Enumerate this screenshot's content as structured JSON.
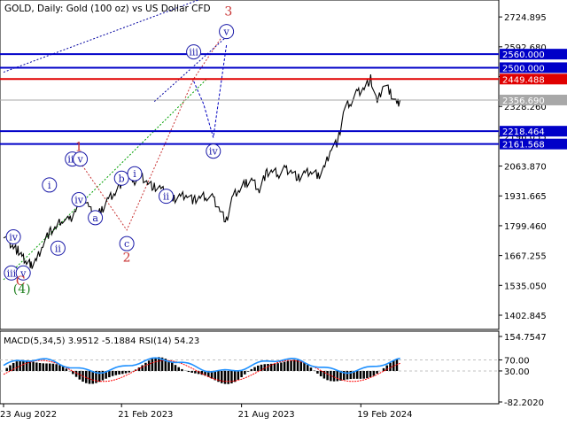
{
  "header": {
    "title": "GOLD, Daily:  Gold (100 oz) vs US Dollar CFD"
  },
  "colors": {
    "price": "#000000",
    "level_blue": "#0000c8",
    "level_red": "#e00000",
    "wave_label": "#1a1aa8",
    "wave_red": "#c83232",
    "wave_green": "#208020",
    "trend_green": "#00a000",
    "trend_navy": "#0000a0",
    "projection": "#0000c0",
    "current_gray": "#a8a8a8",
    "macd_hist": "#000000",
    "macd_signal": "#ff0000",
    "rsi": "#1e90ff",
    "grid": "#c0c0c0"
  },
  "chart_data": [
    {
      "type": "line",
      "name": "price-chart",
      "symbol": "GOLD",
      "timeframe": "Daily",
      "x_labels": [
        "23 Aug 2022",
        "21 Feb 2023",
        "21 Aug 2023",
        "19 Feb 2024"
      ],
      "y_ticks": [
        "2724.895",
        "2592.680",
        "2460.465",
        "2328.260",
        "2196.055",
        "2063.870",
        "1931.665",
        "1799.460",
        "1667.255",
        "1535.050",
        "1402.845"
      ],
      "ylim": [
        1340,
        2800
      ],
      "x_range_days": [
        0,
        750
      ],
      "series": [
        {
          "values_x_days": [
            0,
            8,
            15,
            22,
            28,
            35,
            42,
            50,
            60,
            70,
            80,
            90,
            100,
            110,
            120,
            130,
            140,
            150,
            160,
            170,
            180,
            190,
            200,
            210,
            220,
            230,
            240,
            250,
            260,
            270,
            280,
            290,
            300,
            310,
            320,
            330,
            340,
            350,
            360,
            370,
            380,
            390,
            400,
            410,
            420,
            430,
            440,
            450,
            460,
            470,
            480,
            490,
            500,
            510,
            520,
            530,
            540,
            550,
            560,
            570,
            580,
            590,
            600,
            605
          ],
          "values_y": [
            1765,
            1730,
            1705,
            1690,
            1660,
            1640,
            1625,
            1645,
            1720,
            1770,
            1790,
            1830,
            1820,
            1870,
            1920,
            1880,
            1830,
            1870,
            1920,
            1950,
            1990,
            2030,
            2000,
            2020,
            1990,
            1970,
            1960,
            1940,
            1920,
            1930,
            1940,
            1910,
            1925,
            1930,
            1920,
            1870,
            1820,
            1930,
            1960,
            1990,
            2000,
            1960,
            2030,
            2040,
            2030,
            2050,
            2040,
            2010,
            2030,
            2040,
            2020,
            2060,
            2150,
            2170,
            2320,
            2350,
            2390,
            2410,
            2450,
            2340,
            2430,
            2390,
            2340,
            2356
          ]
        }
      ],
      "current_price": "2356.690",
      "levels": [
        {
          "value": 2560.0,
          "label": "2560.000",
          "color": "blue"
        },
        {
          "value": 2500.0,
          "label": "2500.000",
          "color": "blue"
        },
        {
          "value": 2449.488,
          "label": "2449.488",
          "color": "red"
        },
        {
          "value": 2218.464,
          "label": "2218.464",
          "color": "blue"
        },
        {
          "value": 2161.568,
          "label": "2161.568",
          "color": "blue"
        }
      ],
      "wave_labels": [
        {
          "text": "iv",
          "x_day": 15,
          "y": 1750,
          "style": "circle"
        },
        {
          "text": "iii",
          "x_day": 12,
          "y": 1590,
          "style": "circle"
        },
        {
          "text": "v",
          "x_day": 30,
          "y": 1590,
          "style": "circle"
        },
        {
          "text": "C",
          "x_day": 26,
          "y": 1555,
          "style": "red"
        },
        {
          "text": "(4)",
          "x_day": 28,
          "y": 1520,
          "style": "green"
        },
        {
          "text": "i",
          "x_day": 70,
          "y": 1980,
          "style": "circle"
        },
        {
          "text": "ii",
          "x_day": 83,
          "y": 1700,
          "style": "circle"
        },
        {
          "text": "iii",
          "x_day": 105,
          "y": 2095,
          "style": "circle"
        },
        {
          "text": "v",
          "x_day": 117,
          "y": 2095,
          "style": "circle"
        },
        {
          "text": "1",
          "x_day": 115,
          "y": 2150,
          "style": "red"
        },
        {
          "text": "iv",
          "x_day": 115,
          "y": 1915,
          "style": "circle"
        },
        {
          "text": "a",
          "x_day": 140,
          "y": 1835,
          "style": "circle"
        },
        {
          "text": "b",
          "x_day": 180,
          "y": 2010,
          "style": "circle"
        },
        {
          "text": "i",
          "x_day": 200,
          "y": 2030,
          "style": "circle"
        },
        {
          "text": "c",
          "x_day": 188,
          "y": 1720,
          "style": "circle"
        },
        {
          "text": "2",
          "x_day": 188,
          "y": 1660,
          "style": "red"
        },
        {
          "text": "ii",
          "x_day": 248,
          "y": 1930,
          "style": "circle"
        },
        {
          "text": "iii",
          "x_day": 290,
          "y": 2570,
          "style": "circle"
        },
        {
          "text": "iv",
          "x_day": 320,
          "y": 2130,
          "style": "circle"
        },
        {
          "text": "v",
          "x_day": 340,
          "y": 2660,
          "style": "circle"
        },
        {
          "text": "3",
          "x_day": 343,
          "y": 2750,
          "style": "red"
        }
      ]
    },
    {
      "type": "line",
      "name": "indicator-chart",
      "label": "MACD(5,34,5) 3.9512 -5.1884 RSI(14) 54.23",
      "y_ticks": [
        "154.7547",
        "70.00",
        "30.00",
        "-82.2020"
      ],
      "ylim": [
        -82.202,
        154.7547
      ]
    }
  ]
}
